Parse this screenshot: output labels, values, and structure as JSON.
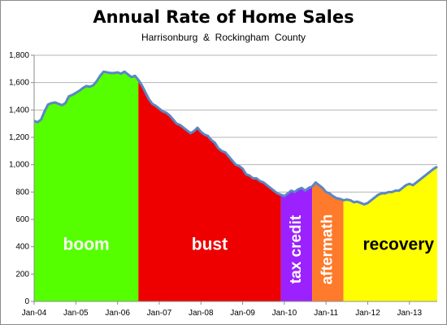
{
  "chart_data": {
    "type": "area",
    "title": "Annual Rate of Home Sales",
    "subtitle": "Harrisonburg  &  Rockingham  County",
    "xlabel": "",
    "ylabel": "",
    "ylim": [
      0,
      1800
    ],
    "y_ticks": [
      0,
      200,
      400,
      600,
      800,
      1000,
      1200,
      1400,
      1600,
      1800
    ],
    "y_tick_labels": [
      "0",
      "200",
      "400",
      "600",
      "800",
      "1,000",
      "1,200",
      "1,400",
      "1,600",
      "1,800"
    ],
    "x_ticks": [
      "2004-01",
      "2005-01",
      "2006-01",
      "2007-01",
      "2008-01",
      "2009-01",
      "2010-01",
      "2011-01",
      "2012-01",
      "2013-01"
    ],
    "x_tick_labels": [
      "Jan-04",
      "Jan-05",
      "Jan-06",
      "Jan-07",
      "Jan-08",
      "Jan-09",
      "Jan-10",
      "Jan-11",
      "Jan-12",
      "Jan-13"
    ],
    "x_range": [
      "2004-01",
      "2013-09"
    ],
    "grid": true,
    "line_color": "#5b86c6",
    "x": [
      "2004-01",
      "2004-02",
      "2004-03",
      "2004-04",
      "2004-05",
      "2004-06",
      "2004-07",
      "2004-08",
      "2004-09",
      "2004-10",
      "2004-11",
      "2004-12",
      "2005-01",
      "2005-02",
      "2005-03",
      "2005-04",
      "2005-05",
      "2005-06",
      "2005-07",
      "2005-08",
      "2005-09",
      "2005-10",
      "2005-11",
      "2005-12",
      "2006-01",
      "2006-02",
      "2006-03",
      "2006-04",
      "2006-05",
      "2006-06",
      "2006-07",
      "2006-08",
      "2006-09",
      "2006-10",
      "2006-11",
      "2006-12",
      "2007-01",
      "2007-02",
      "2007-03",
      "2007-04",
      "2007-05",
      "2007-06",
      "2007-07",
      "2007-08",
      "2007-09",
      "2007-10",
      "2007-11",
      "2007-12",
      "2008-01",
      "2008-02",
      "2008-03",
      "2008-04",
      "2008-05",
      "2008-06",
      "2008-07",
      "2008-08",
      "2008-09",
      "2008-10",
      "2008-11",
      "2008-12",
      "2009-01",
      "2009-02",
      "2009-03",
      "2009-04",
      "2009-05",
      "2009-06",
      "2009-07",
      "2009-08",
      "2009-09",
      "2009-10",
      "2009-11",
      "2009-12",
      "2010-01",
      "2010-02",
      "2010-03",
      "2010-04",
      "2010-05",
      "2010-06",
      "2010-07",
      "2010-08",
      "2010-09",
      "2010-10",
      "2010-11",
      "2010-12",
      "2011-01",
      "2011-02",
      "2011-03",
      "2011-04",
      "2011-05",
      "2011-06",
      "2011-07",
      "2011-08",
      "2011-09",
      "2011-10",
      "2011-11",
      "2011-12",
      "2012-01",
      "2012-02",
      "2012-03",
      "2012-04",
      "2012-05",
      "2012-06",
      "2012-07",
      "2012-08",
      "2012-09",
      "2012-10",
      "2012-11",
      "2012-12",
      "2013-01",
      "2013-02",
      "2013-03",
      "2013-04",
      "2013-05",
      "2013-06",
      "2013-07",
      "2013-08",
      "2013-09"
    ],
    "values": [
      1320,
      1310,
      1330,
      1390,
      1440,
      1450,
      1455,
      1445,
      1435,
      1450,
      1500,
      1510,
      1525,
      1540,
      1560,
      1575,
      1570,
      1580,
      1610,
      1650,
      1680,
      1675,
      1670,
      1670,
      1675,
      1665,
      1680,
      1660,
      1640,
      1650,
      1620,
      1580,
      1530,
      1480,
      1445,
      1430,
      1410,
      1390,
      1380,
      1360,
      1330,
      1300,
      1290,
      1270,
      1250,
      1230,
      1245,
      1270,
      1240,
      1220,
      1210,
      1180,
      1160,
      1120,
      1100,
      1090,
      1060,
      1030,
      1000,
      990,
      970,
      930,
      920,
      900,
      900,
      880,
      870,
      850,
      830,
      810,
      790,
      780,
      770,
      790,
      810,
      800,
      820,
      830,
      810,
      830,
      840,
      870,
      850,
      830,
      800,
      790,
      770,
      755,
      750,
      740,
      745,
      740,
      725,
      730,
      720,
      710,
      720,
      740,
      760,
      780,
      790,
      790,
      800,
      800,
      810,
      810,
      830,
      850,
      860,
      850,
      870,
      890,
      910,
      930,
      950,
      970,
      985
    ],
    "phases": [
      {
        "label": "boom",
        "start": "2004-01",
        "end": "2006-07",
        "color": "#55ff00",
        "text_color": "#ffffff",
        "orientation": "horizontal"
      },
      {
        "label": "bust",
        "start": "2006-07",
        "end": "2009-12",
        "color": "#ee0000",
        "text_color": "#ffffff",
        "orientation": "horizontal"
      },
      {
        "label": "tax credit",
        "start": "2009-12",
        "end": "2010-09",
        "color": "#9b22ff",
        "text_color": "#ffffff",
        "orientation": "vertical"
      },
      {
        "label": "aftermath",
        "start": "2010-09",
        "end": "2011-06",
        "color": "#ff7a2a",
        "text_color": "#ffffff",
        "orientation": "vertical"
      },
      {
        "label": "recovery",
        "start": "2011-06",
        "end": "2013-09",
        "color": "#ffff00",
        "text_color": "#000000",
        "orientation": "horizontal"
      }
    ]
  }
}
